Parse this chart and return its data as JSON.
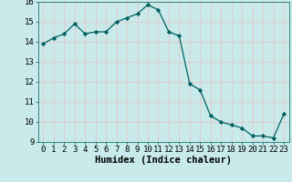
{
  "x": [
    0,
    1,
    2,
    3,
    4,
    5,
    6,
    7,
    8,
    9,
    10,
    11,
    12,
    13,
    14,
    15,
    16,
    17,
    18,
    19,
    20,
    21,
    22,
    23
  ],
  "y": [
    13.9,
    14.2,
    14.4,
    14.9,
    14.4,
    14.5,
    14.5,
    15.0,
    15.2,
    15.4,
    15.85,
    15.6,
    14.5,
    14.3,
    11.9,
    11.6,
    10.3,
    10.0,
    9.85,
    9.7,
    9.3,
    9.3,
    9.2,
    10.4
  ],
  "xlabel": "Humidex (Indice chaleur)",
  "ylim": [
    9,
    16
  ],
  "xlim": [
    -0.5,
    23.5
  ],
  "yticks": [
    9,
    10,
    11,
    12,
    13,
    14,
    15,
    16
  ],
  "xticks": [
    0,
    1,
    2,
    3,
    4,
    5,
    6,
    7,
    8,
    9,
    10,
    11,
    12,
    13,
    14,
    15,
    16,
    17,
    18,
    19,
    20,
    21,
    22,
    23
  ],
  "line_color": "#006060",
  "marker_color": "#006060",
  "bg_color": "#c8eaea",
  "grid_color": "#e8c8c8",
  "xlabel_fontsize": 7.5,
  "tick_fontsize": 6.5
}
